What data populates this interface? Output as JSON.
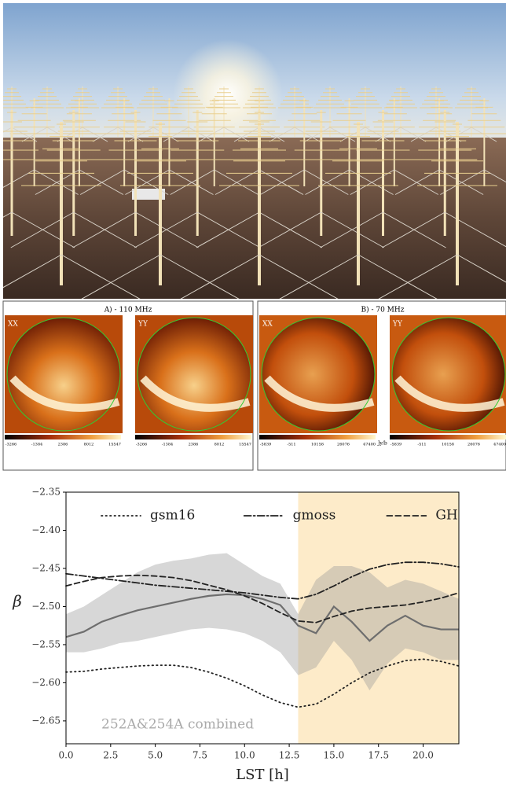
{
  "maps": {
    "panels": [
      {
        "title": "A) - 110 MHz",
        "images": [
          {
            "label": "XX"
          },
          {
            "label": "YY"
          }
        ],
        "colorbar_ticks": [
          "-3266",
          "-1384",
          "2386",
          "8012",
          "15547"
        ]
      },
      {
        "title": "B) - 70 MHz",
        "images": [
          {
            "label": "XX"
          },
          {
            "label": "YY"
          }
        ],
        "colorbar_ticks": [
          "-5839",
          "-511",
          "10158",
          "26076",
          "47400"
        ],
        "unit": "Jy/b"
      }
    ]
  },
  "chart_data": {
    "type": "line",
    "xlabel": "LST [h]",
    "ylabel": "β",
    "annotation": "252A&254A combined",
    "x": [
      0,
      1,
      2,
      3,
      4,
      5,
      6,
      7,
      8,
      9,
      10,
      11,
      12,
      13,
      14,
      15,
      16,
      17,
      18,
      19,
      20,
      21,
      22
    ],
    "xlim": [
      0,
      22
    ],
    "xticks": [
      {
        "value": 0,
        "label": "0.0"
      },
      {
        "value": 2.5,
        "label": "2.5"
      },
      {
        "value": 5,
        "label": "5.0"
      },
      {
        "value": 7.5,
        "label": "7.5"
      },
      {
        "value": 10,
        "label": "10.0"
      },
      {
        "value": 12.5,
        "label": "12.5"
      },
      {
        "value": 15,
        "label": "15.0"
      },
      {
        "value": 17.5,
        "label": "17.5"
      },
      {
        "value": 20,
        "label": "20.0"
      }
    ],
    "ylim": [
      -2.68,
      -2.35
    ],
    "yticks": [
      {
        "value": -2.35,
        "label": "−2.35"
      },
      {
        "value": -2.4,
        "label": "−2.40"
      },
      {
        "value": -2.45,
        "label": "−2.45"
      },
      {
        "value": -2.5,
        "label": "−2.50"
      },
      {
        "value": -2.55,
        "label": "−2.55"
      },
      {
        "value": -2.6,
        "label": "−2.60"
      },
      {
        "value": -2.65,
        "label": "−2.65"
      }
    ],
    "highlight_x": [
      13,
      22
    ],
    "highlight_color": "#fdebc9",
    "legend": "top",
    "series": [
      {
        "name": "gsm16",
        "color": "#222222",
        "dash": "dotted",
        "values": [
          -2.586,
          -2.585,
          -2.582,
          -2.58,
          -2.578,
          -2.577,
          -2.577,
          -2.58,
          -2.586,
          -2.594,
          -2.604,
          -2.616,
          -2.626,
          -2.632,
          -2.628,
          -2.615,
          -2.6,
          -2.587,
          -2.578,
          -2.571,
          -2.569,
          -2.572,
          -2.578
        ]
      },
      {
        "name": "gmoss",
        "color": "#222222",
        "dash": "dashdot",
        "values": [
          -2.457,
          -2.46,
          -2.463,
          -2.466,
          -2.469,
          -2.472,
          -2.474,
          -2.476,
          -2.478,
          -2.48,
          -2.482,
          -2.485,
          -2.488,
          -2.49,
          -2.484,
          -2.473,
          -2.461,
          -2.451,
          -2.445,
          -2.442,
          -2.442,
          -2.444,
          -2.448
        ]
      },
      {
        "name": "GH",
        "color": "#222222",
        "dash": "dashed",
        "values": [
          -2.473,
          -2.467,
          -2.462,
          -2.46,
          -2.459,
          -2.46,
          -2.462,
          -2.466,
          -2.472,
          -2.478,
          -2.486,
          -2.496,
          -2.508,
          -2.519,
          -2.521,
          -2.513,
          -2.506,
          -2.502,
          -2.5,
          -2.498,
          -2.494,
          -2.489,
          -2.482
        ]
      }
    ],
    "mean": {
      "color": "#6e6e6e",
      "values": [
        -2.54,
        -2.533,
        -2.52,
        -2.512,
        -2.505,
        -2.5,
        -2.495,
        -2.49,
        -2.486,
        -2.484,
        -2.485,
        -2.49,
        -2.498,
        -2.525,
        -2.535,
        -2.5,
        -2.52,
        -2.545,
        -2.525,
        -2.512,
        -2.525,
        -2.53,
        -2.53
      ]
    },
    "band": {
      "color": "#9a9a9a",
      "upper": [
        -2.51,
        -2.5,
        -2.485,
        -2.47,
        -2.455,
        -2.445,
        -2.44,
        -2.437,
        -2.432,
        -2.43,
        -2.445,
        -2.46,
        -2.47,
        -2.51,
        -2.465,
        -2.447,
        -2.447,
        -2.455,
        -2.475,
        -2.465,
        -2.47,
        -2.48,
        -2.49
      ],
      "lower": [
        -2.56,
        -2.56,
        -2.555,
        -2.548,
        -2.545,
        -2.54,
        -2.535,
        -2.53,
        -2.528,
        -2.53,
        -2.535,
        -2.545,
        -2.56,
        -2.59,
        -2.58,
        -2.545,
        -2.57,
        -2.61,
        -2.575,
        -2.555,
        -2.56,
        -2.57,
        -2.57
      ]
    }
  }
}
